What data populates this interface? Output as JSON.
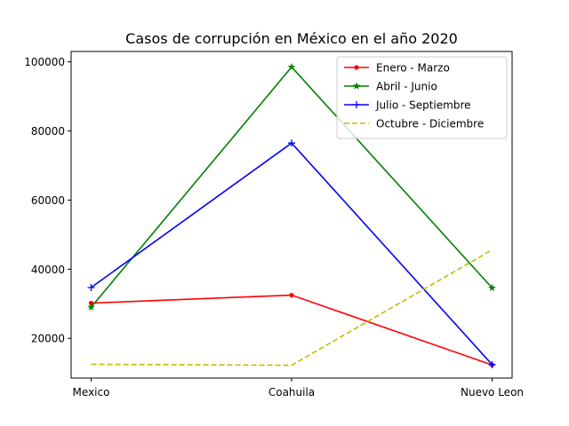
{
  "chart_data": {
    "type": "line",
    "title": "Casos de corrupción en México en el año 2020",
    "xlabel": "",
    "ylabel": "",
    "categories": [
      "Mexico",
      "Coahuila",
      "Nuevo Leon"
    ],
    "yticks": [
      20000,
      40000,
      60000,
      80000,
      100000
    ],
    "ylim": [
      8500,
      103000
    ],
    "grid": false,
    "legend_position": "top-right",
    "series": [
      {
        "name": "Enero - Marzo",
        "values": [
          30200,
          32500,
          12300
        ],
        "color": "#ff0000",
        "marker": "dot",
        "dash": "solid"
      },
      {
        "name": "Abril - Junio",
        "values": [
          29000,
          98500,
          34600
        ],
        "color": "#008000",
        "marker": "star",
        "dash": "solid"
      },
      {
        "name": "Julio - Septiembre",
        "values": [
          34700,
          76500,
          12400
        ],
        "color": "#0000ff",
        "marker": "plus",
        "dash": "solid"
      },
      {
        "name": "Octubre - Diciembre",
        "values": [
          12500,
          12200,
          45600
        ],
        "color": "#bfbf00",
        "marker": "none",
        "dash": "dashed"
      }
    ]
  }
}
